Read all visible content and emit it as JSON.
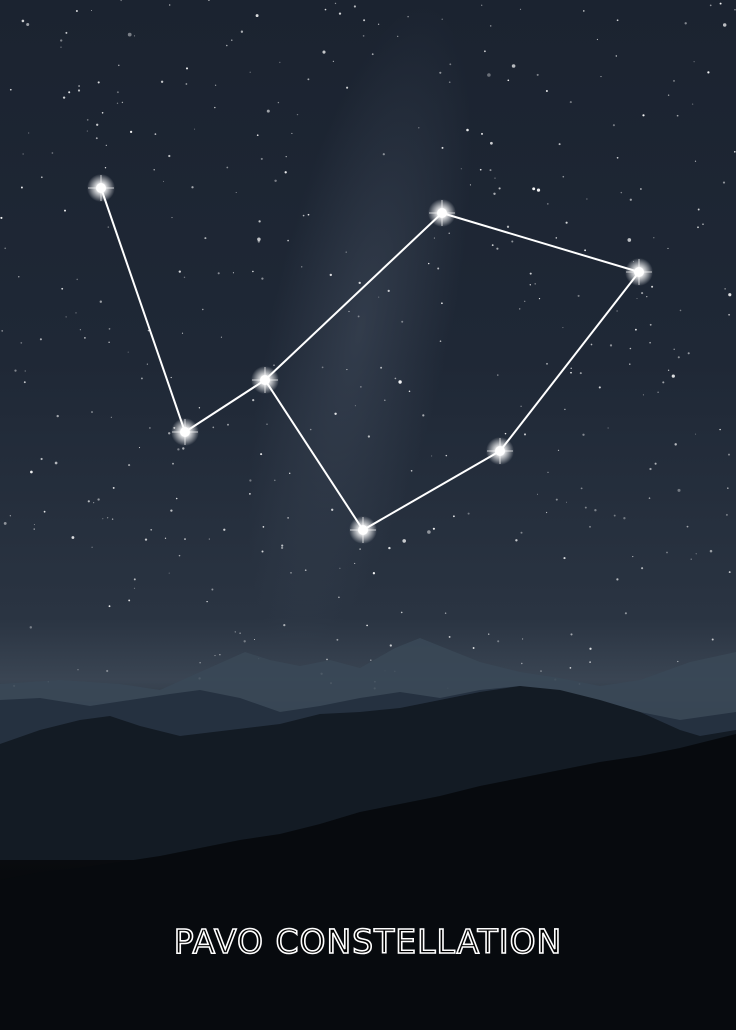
{
  "poster": {
    "title": "PAVO CONSTELLATION"
  },
  "colors": {
    "sky_top": "#1b2330",
    "sky_mid": "#2a3442",
    "mountains_far": "#3a4857",
    "mountains_mid": "#253140",
    "mountains_near": "#111820",
    "foreground": "#000000",
    "star": "#ffffff",
    "line": "#ffffff"
  },
  "constellation": {
    "stars": [
      {
        "id": "s1"
      },
      {
        "id": "s2"
      },
      {
        "id": "s3"
      },
      {
        "id": "s4"
      },
      {
        "id": "s5"
      },
      {
        "id": "s6"
      },
      {
        "id": "s7"
      }
    ],
    "links": [
      [
        "s1",
        "s2"
      ],
      [
        "s2",
        "s3"
      ],
      [
        "s3",
        "s4"
      ],
      [
        "s4",
        "s5"
      ],
      [
        "s5",
        "s6"
      ],
      [
        "s6",
        "s7"
      ],
      [
        "s7",
        "s3"
      ]
    ]
  }
}
